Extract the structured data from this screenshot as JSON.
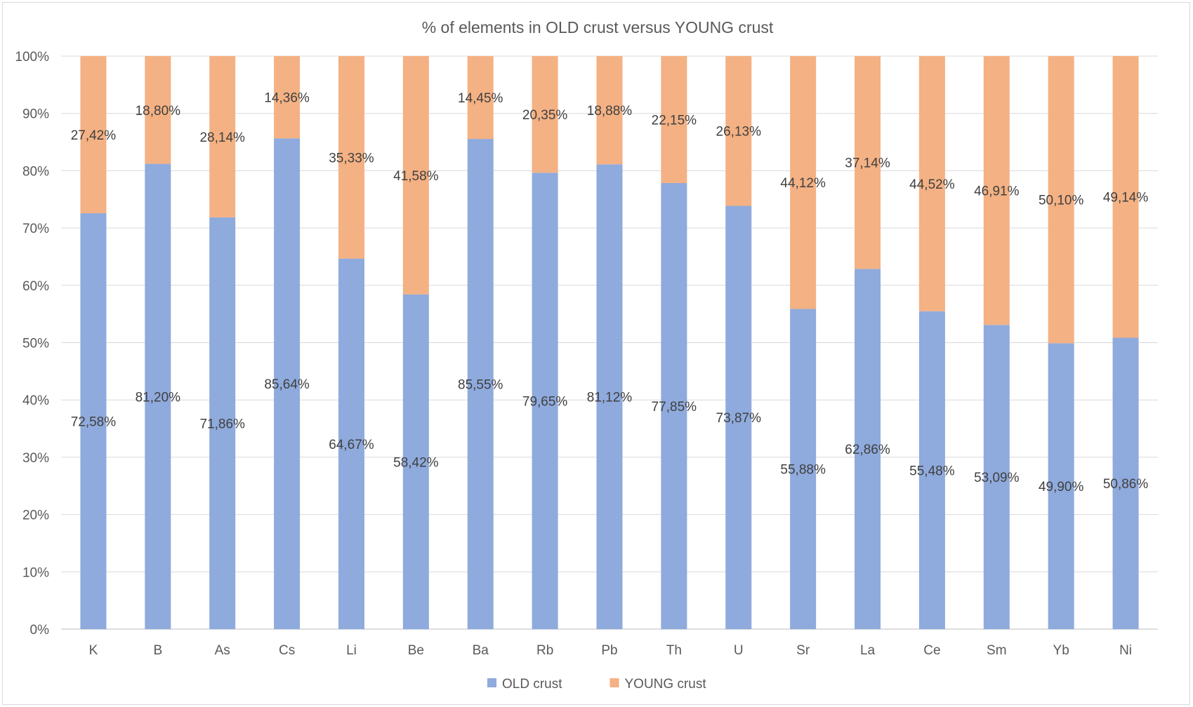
{
  "chart_data": {
    "type": "bar",
    "stacked": true,
    "percent_stacked": true,
    "title": "% of elements in OLD crust versus YOUNG crust",
    "categories": [
      "K",
      "B",
      "As",
      "Cs",
      "Li",
      "Be",
      "Ba",
      "Rb",
      "Pb",
      "Th",
      "U",
      "Sr",
      "La",
      "Ce",
      "Sm",
      "Yb",
      "Ni"
    ],
    "series": [
      {
        "name": "OLD crust",
        "color": "#8faadc",
        "values": [
          72.58,
          81.2,
          71.86,
          85.64,
          64.67,
          58.42,
          85.55,
          79.65,
          81.12,
          77.85,
          73.87,
          55.88,
          62.86,
          55.48,
          53.09,
          49.9,
          50.86
        ],
        "labels": [
          "72,58%",
          "81,20%",
          "71,86%",
          "85,64%",
          "64,67%",
          "58,42%",
          "85,55%",
          "79,65%",
          "81,12%",
          "77,85%",
          "73,87%",
          "55,88%",
          "62,86%",
          "55,48%",
          "53,09%",
          "49,90%",
          "50,86%"
        ]
      },
      {
        "name": "YOUNG crust",
        "color": "#f4b183",
        "values": [
          27.42,
          18.8,
          28.14,
          14.36,
          35.33,
          41.58,
          14.45,
          20.35,
          18.88,
          22.15,
          26.13,
          44.12,
          37.14,
          44.52,
          46.91,
          50.1,
          49.14
        ],
        "labels": [
          "27,42%",
          "18,80%",
          "28,14%",
          "14,36%",
          "35,33%",
          "41,58%",
          "14,45%",
          "20,35%",
          "18,88%",
          "22,15%",
          "26,13%",
          "44,12%",
          "37,14%",
          "44,52%",
          "46,91%",
          "50,10%",
          "49,14%"
        ]
      }
    ],
    "ylim": [
      0,
      100
    ],
    "yticks": [
      "0%",
      "10%",
      "20%",
      "30%",
      "40%",
      "50%",
      "60%",
      "70%",
      "80%",
      "90%",
      "100%"
    ],
    "grid": true,
    "legend": "bottom"
  }
}
